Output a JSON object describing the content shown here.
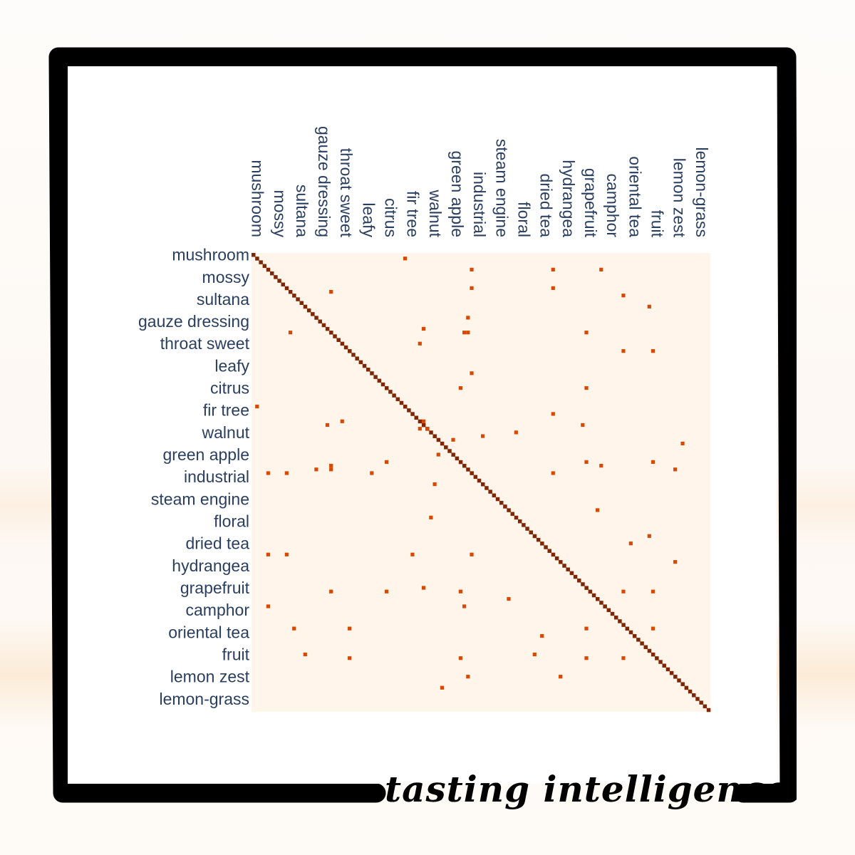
{
  "brand": "tasting intelligence",
  "colors": {
    "diagonal": "#7f2704",
    "offdiag": "#d94801",
    "background": "#fff5eb",
    "label": "#2a3f5f",
    "frame": "#000000"
  },
  "chart_data": {
    "type": "heatmap",
    "size": 124,
    "label_every": 6,
    "tick_labels": [
      "mushroom",
      "mossy",
      "sultana",
      "gauze dressing",
      "throat sweet",
      "leafy",
      "citrus",
      "fir tree",
      "walnut",
      "green apple",
      "industrial",
      "steam engine",
      "floral",
      "dried tea",
      "hydrangea",
      "grapefruit",
      "camphor",
      "oriental tea",
      "fruit",
      "lemon zest",
      "lemon-grass"
    ],
    "diagonal_value": 1,
    "offdiag_value": 0.7,
    "cells": [
      [
        1,
        41
      ],
      [
        4,
        59
      ],
      [
        4,
        81
      ],
      [
        4,
        94
      ],
      [
        9,
        59
      ],
      [
        9,
        81
      ],
      [
        10,
        21
      ],
      [
        11,
        100
      ],
      [
        14,
        107
      ],
      [
        17,
        58
      ],
      [
        21,
        10
      ],
      [
        20,
        46
      ],
      [
        21,
        57
      ],
      [
        21,
        58
      ],
      [
        21,
        90
      ],
      [
        24,
        45
      ],
      [
        26,
        100
      ],
      [
        26,
        108
      ],
      [
        32,
        59
      ],
      [
        36,
        56
      ],
      [
        36,
        90
      ],
      [
        41,
        1
      ],
      [
        43,
        81
      ],
      [
        45,
        46
      ],
      [
        45,
        24
      ],
      [
        46,
        20
      ],
      [
        46,
        89
      ],
      [
        47,
        45
      ],
      [
        47,
        47
      ],
      [
        48,
        71
      ],
      [
        49,
        62
      ],
      [
        50,
        54
      ],
      [
        51,
        116
      ],
      [
        54,
        50
      ],
      [
        56,
        36
      ],
      [
        56,
        90
      ],
      [
        56,
        108
      ],
      [
        57,
        94
      ],
      [
        57,
        21
      ],
      [
        58,
        21
      ],
      [
        58,
        17
      ],
      [
        58,
        114
      ],
      [
        59,
        4
      ],
      [
        59,
        9
      ],
      [
        59,
        32
      ],
      [
        59,
        81
      ],
      [
        62,
        49
      ],
      [
        69,
        93
      ],
      [
        71,
        48
      ],
      [
        76,
        107
      ],
      [
        78,
        102
      ],
      [
        81,
        4
      ],
      [
        81,
        9
      ],
      [
        81,
        43
      ],
      [
        81,
        59
      ],
      [
        83,
        114
      ],
      [
        90,
        46
      ],
      [
        91,
        21
      ],
      [
        91,
        36
      ],
      [
        91,
        56
      ],
      [
        91,
        100
      ],
      [
        91,
        108
      ],
      [
        93,
        69
      ],
      [
        95,
        4
      ],
      [
        95,
        57
      ],
      [
        101,
        11
      ],
      [
        101,
        26
      ],
      [
        101,
        90
      ],
      [
        101,
        108
      ],
      [
        103,
        78
      ],
      [
        108,
        76
      ],
      [
        108,
        14
      ],
      [
        109,
        26
      ],
      [
        109,
        56
      ],
      [
        109,
        90
      ],
      [
        109,
        100
      ],
      [
        114,
        83
      ],
      [
        114,
        58
      ],
      [
        117,
        51
      ]
    ]
  }
}
